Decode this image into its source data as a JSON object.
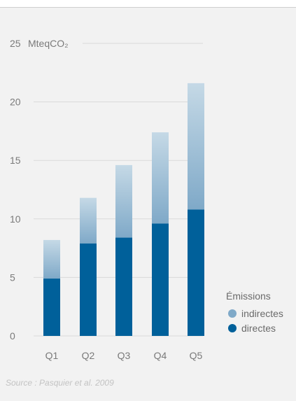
{
  "chart_data": {
    "type": "bar",
    "stacked": true,
    "categories": [
      "Q1",
      "Q2",
      "Q3",
      "Q4",
      "Q5"
    ],
    "series": [
      {
        "name": "directes",
        "key": "directes",
        "values": [
          4.9,
          7.9,
          8.4,
          9.6,
          10.8
        ],
        "color": "#00609a"
      },
      {
        "name": "indirectes",
        "key": "indirectes",
        "values": [
          3.3,
          3.9,
          6.2,
          7.8,
          10.8
        ],
        "color": "#7fa9c8"
      }
    ],
    "ylim": [
      0,
      25
    ],
    "yticks": [
      "0",
      "5",
      "10",
      "15",
      "20",
      "25"
    ],
    "ytick_values": [
      0,
      5,
      10,
      15,
      20,
      25
    ],
    "unit_label": "MteqCO₂",
    "legend": {
      "title": "Émissions",
      "items": [
        "indirectes",
        "directes"
      ],
      "placement": "right"
    },
    "source": "Source : Pasquier et al. 2009",
    "colors": {
      "directes": "#00609a",
      "indirectes": "#7fa9c8",
      "indirectes_top": "#c5d9e6",
      "grid": "#d9d9d9"
    }
  }
}
